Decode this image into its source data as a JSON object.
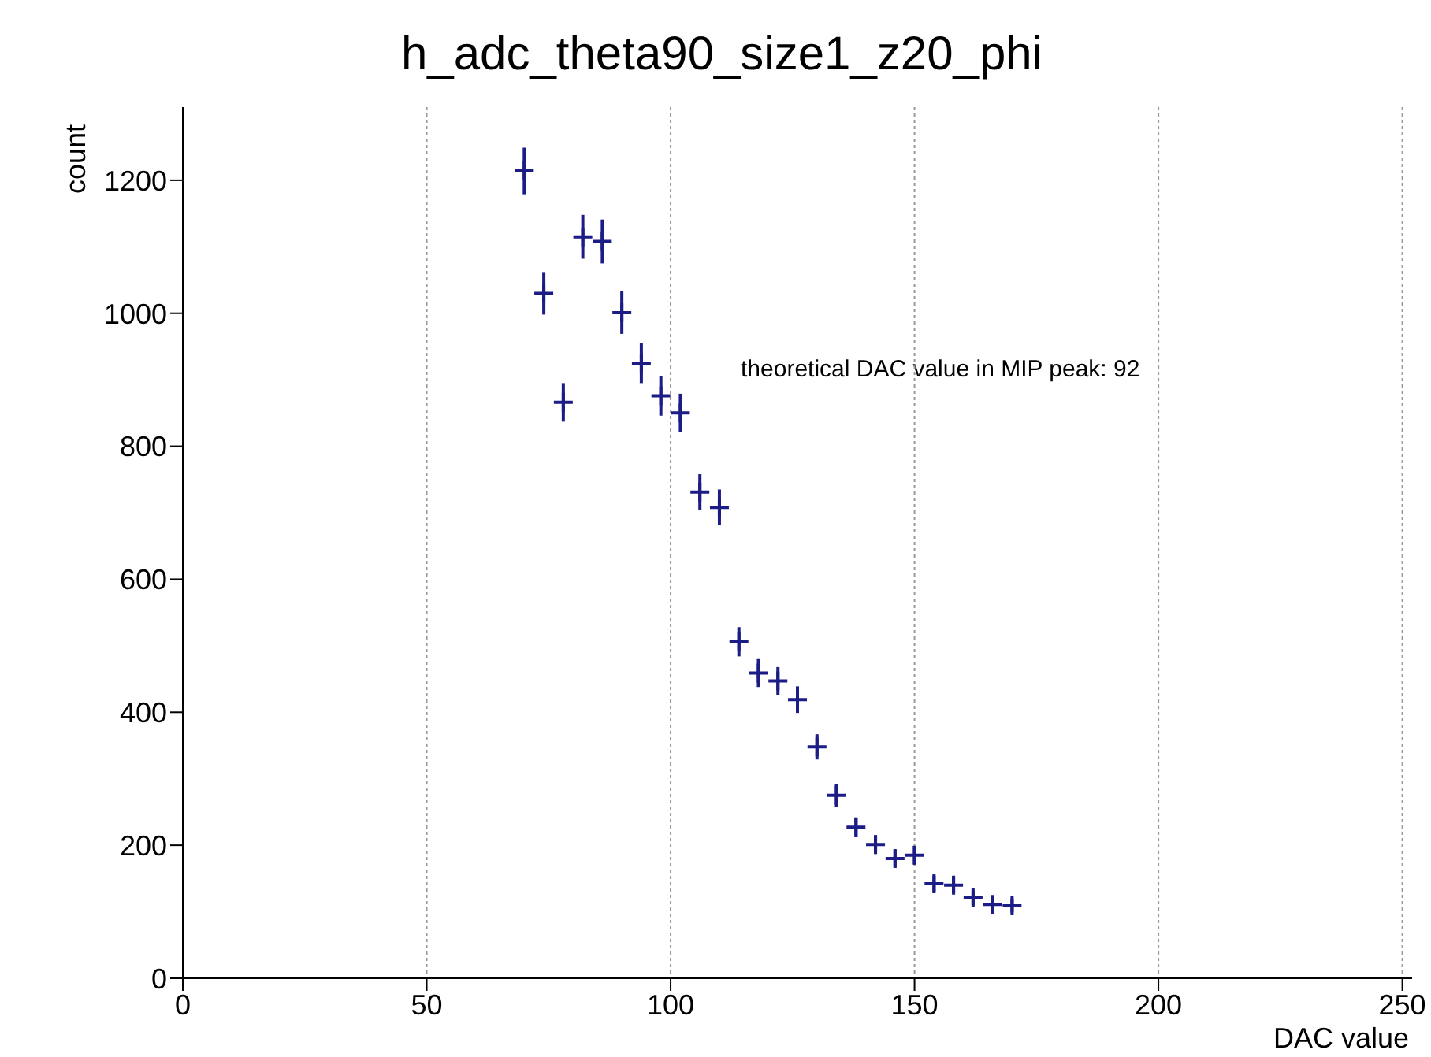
{
  "chart_data": {
    "type": "scatter",
    "title": "h_adc_theta90_size1_z20_phi",
    "xlabel": "DAC value",
    "ylabel": "count",
    "annotations": [
      "theoretical DAC value in MIP peak: 92"
    ],
    "x": [
      70,
      74,
      78,
      82,
      86,
      90,
      94,
      98,
      102,
      106,
      110,
      114,
      118,
      122,
      126,
      130,
      134,
      138,
      142,
      146,
      150,
      154,
      158,
      162,
      166,
      170
    ],
    "series": [
      {
        "color": "#1c1c86",
        "values": [
          1214,
          1030,
          866,
          1115,
          1108,
          1001,
          925,
          876,
          850,
          731,
          708,
          506,
          459,
          447,
          419,
          348,
          275,
          227,
          201,
          180,
          185,
          142,
          140,
          121,
          111,
          109
        ],
        "errors": [
          35,
          32,
          29,
          33,
          33,
          32,
          30,
          30,
          29,
          27,
          27,
          22,
          21,
          21,
          20,
          19,
          17,
          15,
          14,
          13,
          14,
          12,
          12,
          11,
          11,
          10
        ]
      }
    ],
    "xlim": [
      0,
      252
    ],
    "xticks": [
      0,
      50,
      100,
      150,
      200,
      250
    ],
    "ylim": [
      0,
      1310
    ],
    "yticks": [
      0,
      200,
      400,
      600,
      800,
      1000,
      1200
    ],
    "grid": "x",
    "marker": "cross",
    "legend": false
  }
}
